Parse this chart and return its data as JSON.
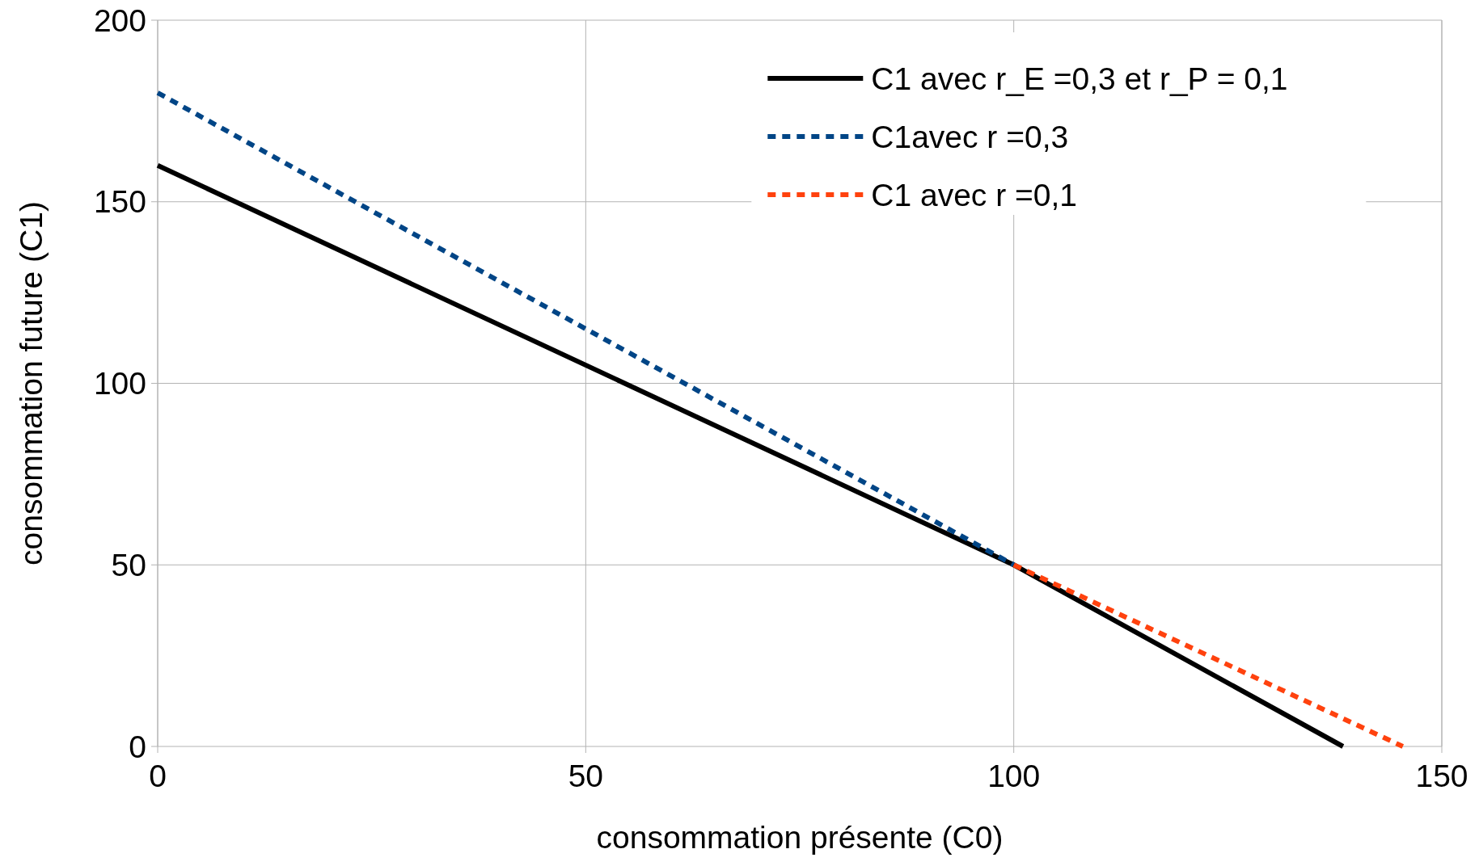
{
  "chart_data": {
    "type": "line",
    "xlabel": "consommation présente (C0)",
    "ylabel": "consommation future (C1)",
    "xlim": [
      0,
      150
    ],
    "ylim": [
      0,
      200
    ],
    "xticks": [
      0,
      50,
      100,
      150
    ],
    "yticks": [
      0,
      50,
      100,
      150,
      200
    ],
    "grid": true,
    "legend": "top right",
    "series": [
      {
        "name": "C1 avec r_E =0,3 et r_P = 0,1",
        "color": "#000000",
        "line_style": "solid",
        "x": [
          0,
          100,
          138.46
        ],
        "values": [
          160,
          50,
          0
        ]
      },
      {
        "name": "C1avec r =0,3",
        "color": "#004586",
        "line_style": "dashed",
        "x": [
          0,
          100
        ],
        "values": [
          180,
          50
        ]
      },
      {
        "name": "C1 avec r =0,1",
        "color": "#ff420e",
        "line_style": "dashed",
        "x": [
          100,
          145.45
        ],
        "values": [
          50,
          0
        ]
      }
    ]
  }
}
